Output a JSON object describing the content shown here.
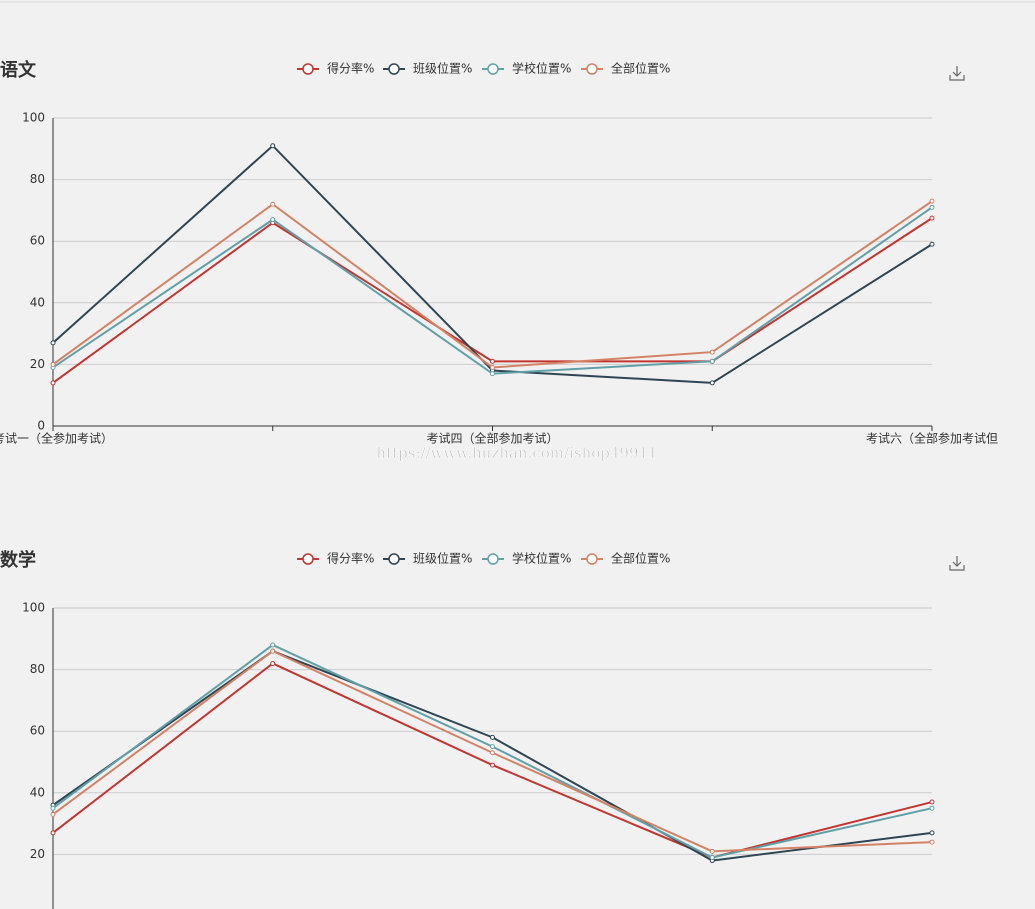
{
  "chart_data": [
    {
      "type": "line",
      "title": "语文",
      "categories": [
        "考试一（全参加考试）",
        null,
        "考试四（全部参加考试）",
        null,
        "考试六（全部参加考试但"
      ],
      "series": [
        {
          "name": "得分率%",
          "color": "#c23531",
          "values": [
            14,
            66,
            21,
            21,
            67.5
          ]
        },
        {
          "name": "班级位置%",
          "color": "#2f4554",
          "values": [
            27,
            91,
            18,
            14,
            59
          ]
        },
        {
          "name": "学校位置%",
          "color": "#61a0a8",
          "values": [
            19,
            67,
            17,
            21,
            71
          ]
        },
        {
          "name": "全部位置%",
          "color": "#d48265",
          "values": [
            20,
            72,
            19,
            24,
            73
          ]
        }
      ],
      "ylim": [
        0,
        100
      ],
      "yticks": [
        0,
        20,
        40,
        60,
        80,
        100
      ],
      "grid": true
    },
    {
      "type": "line",
      "title": "数学",
      "categories": [
        null,
        null,
        null,
        null,
        null
      ],
      "series": [
        {
          "name": "得分率%",
          "color": "#c23531",
          "values": [
            27,
            82,
            49,
            19,
            37
          ]
        },
        {
          "name": "班级位置%",
          "color": "#2f4554",
          "values": [
            36,
            86,
            58,
            18,
            27
          ]
        },
        {
          "name": "学校位置%",
          "color": "#61a0a8",
          "values": [
            35,
            88,
            55,
            19,
            35
          ]
        },
        {
          "name": "全部位置%",
          "color": "#d48265",
          "values": [
            33,
            86,
            53,
            21,
            24
          ]
        }
      ],
      "ylim": [
        0,
        100
      ],
      "yticks": [
        20,
        40,
        60,
        80,
        100
      ],
      "grid": true
    }
  ],
  "watermark": "https://www.huzhan.com/ishop49911"
}
